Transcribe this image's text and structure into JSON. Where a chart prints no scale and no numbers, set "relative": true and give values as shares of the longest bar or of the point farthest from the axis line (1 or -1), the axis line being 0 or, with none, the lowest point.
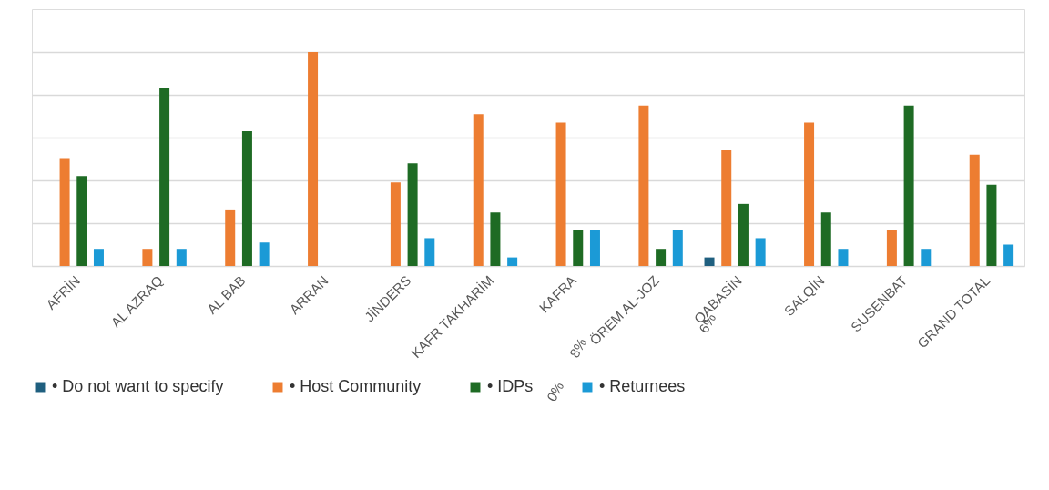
{
  "chart_data": {
    "type": "bar",
    "relative": true,
    "grid": "y",
    "legend": "bottom",
    "categories": [
      "AFRİN",
      "AL AZRAQ",
      "AL BAB",
      "ARRAN",
      "JİNDERS",
      "KAFR TAKHARİM",
      "KAFRA",
      "ÖREM AL-JOZ",
      "QABASİN",
      "SALQİN",
      "SUSENBAT",
      "GRAND TOTAL"
    ],
    "series": [
      {
        "name": "• Do not want to specify",
        "color": "#1f5f7f",
        "values": [
          null,
          null,
          null,
          null,
          null,
          null,
          null,
          null,
          0.04,
          null,
          null,
          null
        ]
      },
      {
        "name": "• Host Community",
        "color": "#ed7d31",
        "values": [
          0.5,
          0.08,
          0.26,
          1,
          0.39,
          0.71,
          0.67,
          0.75,
          0.54,
          0.67,
          0.17,
          0.52
        ]
      },
      {
        "name": "• IDPs",
        "color": "#1e6b24",
        "values": [
          0.42,
          0.83,
          0.63,
          null,
          0.48,
          0.25,
          0.17,
          0.08,
          0.29,
          0.25,
          0.75,
          0.38
        ]
      },
      {
        "name": "• Returnees",
        "color": "#1b9ad6",
        "values": [
          0.08,
          0.08,
          0.11,
          null,
          0.13,
          0.04,
          0.17,
          0.17,
          0.13,
          0.08,
          0.08,
          0.1
        ]
      }
    ],
    "annotations": [
      "0%",
      "8%",
      "6%"
    ]
  }
}
